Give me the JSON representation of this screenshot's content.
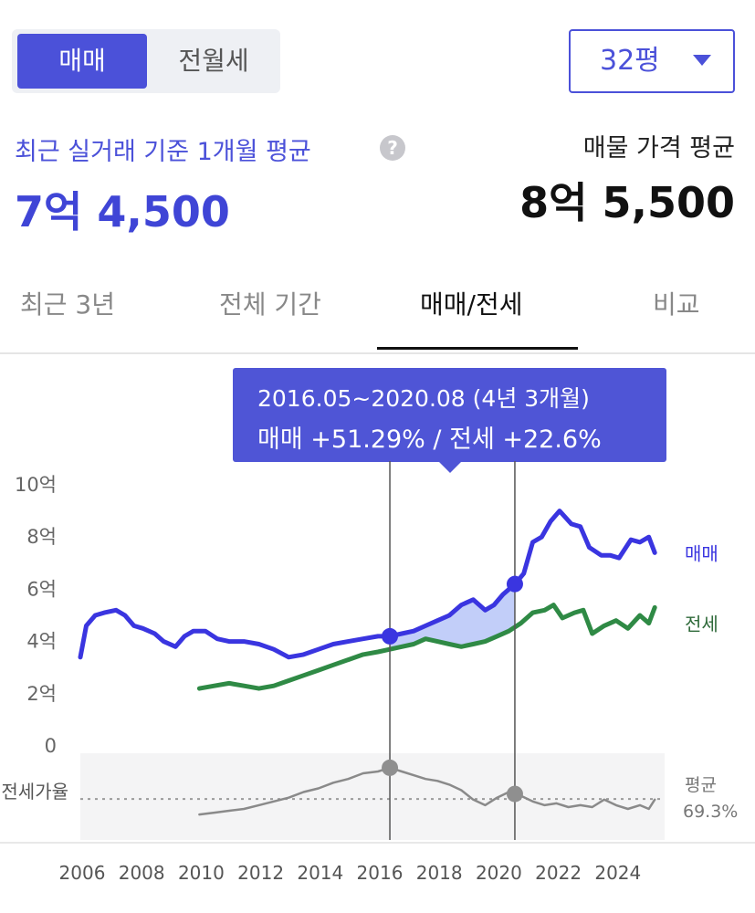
{
  "toggle": {
    "sale": "매매",
    "jeonse_wolse": "전월세"
  },
  "size_select": {
    "value": "32평",
    "icon": "chevron-down-icon"
  },
  "recent": {
    "label": "최근 실거래 기준 1개월 평균",
    "help_icon": "?",
    "value": "7억 4,500"
  },
  "listing": {
    "label": "매물 가격 평균",
    "value": "8억 5,500"
  },
  "tabs": [
    "최근 3년",
    "전체 기간",
    "매매/전세",
    "비교"
  ],
  "tooltip": {
    "period": "2016.05~2020.08 (4년 3개월)",
    "change": "매매 +51.29%  /  전세 +22.6%"
  },
  "colors": {
    "accent": "#4b51d9",
    "sale_line": "#3a35e0",
    "jeonse_line": "#2f8a45",
    "ratio_line": "#8a8a8a",
    "highlight_fill": "#aebdf7"
  },
  "chart_data": {
    "type": "line",
    "x_ticks": [
      "2006",
      "2008",
      "2010",
      "2012",
      "2014",
      "2016",
      "2018",
      "2020",
      "2022",
      "2024"
    ],
    "y_ticks": [
      "10억",
      "8억",
      "6억",
      "4억",
      "2억",
      "0"
    ],
    "ylim": [
      0,
      10
    ],
    "y_unit": "억",
    "series": [
      {
        "name": "매매",
        "x": [
          2006.0,
          2006.2,
          2006.5,
          2006.8,
          2007.2,
          2007.5,
          2007.8,
          2008.1,
          2008.5,
          2008.8,
          2009.2,
          2009.5,
          2009.8,
          2010.2,
          2010.6,
          2011.0,
          2011.5,
          2012.0,
          2012.5,
          2013.0,
          2013.5,
          2014.0,
          2014.5,
          2015.0,
          2015.5,
          2016.0,
          2016.4,
          2016.8,
          2017.2,
          2017.6,
          2018.0,
          2018.4,
          2018.8,
          2019.2,
          2019.6,
          2019.9,
          2020.2,
          2020.6,
          2020.9,
          2021.2,
          2021.5,
          2021.8,
          2022.1,
          2022.5,
          2022.8,
          2023.1,
          2023.5,
          2023.8,
          2024.1,
          2024.5,
          2024.8,
          2025.1,
          2025.3
        ],
        "values": [
          3.4,
          4.6,
          5.0,
          5.1,
          5.2,
          5.0,
          4.6,
          4.5,
          4.3,
          4.0,
          3.8,
          4.2,
          4.4,
          4.4,
          4.1,
          4.0,
          4.0,
          3.9,
          3.7,
          3.4,
          3.5,
          3.7,
          3.9,
          4.0,
          4.1,
          4.2,
          4.2,
          4.3,
          4.4,
          4.6,
          4.8,
          5.0,
          5.4,
          5.6,
          5.2,
          5.4,
          5.8,
          6.2,
          6.6,
          7.8,
          8.0,
          8.6,
          9.0,
          8.5,
          8.4,
          7.6,
          7.3,
          7.3,
          7.2,
          7.9,
          7.8,
          8.0,
          7.4
        ]
      },
      {
        "name": "전세",
        "x": [
          2010.0,
          2010.5,
          2011.0,
          2011.5,
          2012.0,
          2012.5,
          2013.0,
          2013.5,
          2014.0,
          2014.5,
          2015.0,
          2015.5,
          2016.0,
          2016.4,
          2016.8,
          2017.2,
          2017.6,
          2018.0,
          2018.4,
          2018.8,
          2019.2,
          2019.6,
          2020.0,
          2020.4,
          2020.8,
          2021.2,
          2021.6,
          2021.9,
          2022.2,
          2022.6,
          2022.9,
          2023.2,
          2023.6,
          2024.0,
          2024.4,
          2024.8,
          2025.1,
          2025.3
        ],
        "values": [
          2.2,
          2.3,
          2.4,
          2.3,
          2.2,
          2.3,
          2.5,
          2.7,
          2.9,
          3.1,
          3.3,
          3.5,
          3.6,
          3.7,
          3.8,
          3.9,
          4.1,
          4.0,
          3.9,
          3.8,
          3.9,
          4.0,
          4.2,
          4.4,
          4.7,
          5.1,
          5.2,
          5.4,
          4.9,
          5.1,
          5.2,
          4.3,
          4.6,
          4.8,
          4.5,
          5.0,
          4.7,
          5.3
        ]
      },
      {
        "name": "전세가율",
        "x": [
          2010.0,
          2010.5,
          2011.0,
          2011.5,
          2012.0,
          2012.5,
          2013.0,
          2013.5,
          2014.0,
          2014.5,
          2015.0,
          2015.5,
          2016.0,
          2016.4,
          2016.8,
          2017.2,
          2017.6,
          2018.0,
          2018.4,
          2018.8,
          2019.2,
          2019.6,
          2020.0,
          2020.4,
          2020.8,
          2021.2,
          2021.6,
          2022.0,
          2022.4,
          2022.8,
          2023.2,
          2023.6,
          2024.0,
          2024.4,
          2024.8,
          2025.1,
          2025.3
        ],
        "values": [
          61,
          62,
          63,
          64,
          66,
          68,
          70,
          73,
          75,
          78,
          80,
          83,
          84,
          86,
          84,
          82,
          80,
          79,
          77,
          74,
          69,
          66,
          70,
          73,
          71,
          68,
          66,
          67,
          65,
          66,
          65,
          69,
          66,
          64,
          66,
          64,
          69
        ]
      }
    ],
    "ratio_average": {
      "label": "평균",
      "value": "69.3%"
    },
    "ratio_label": "전세가율",
    "highlight_range": {
      "start": 2016.4,
      "end": 2020.6
    }
  }
}
